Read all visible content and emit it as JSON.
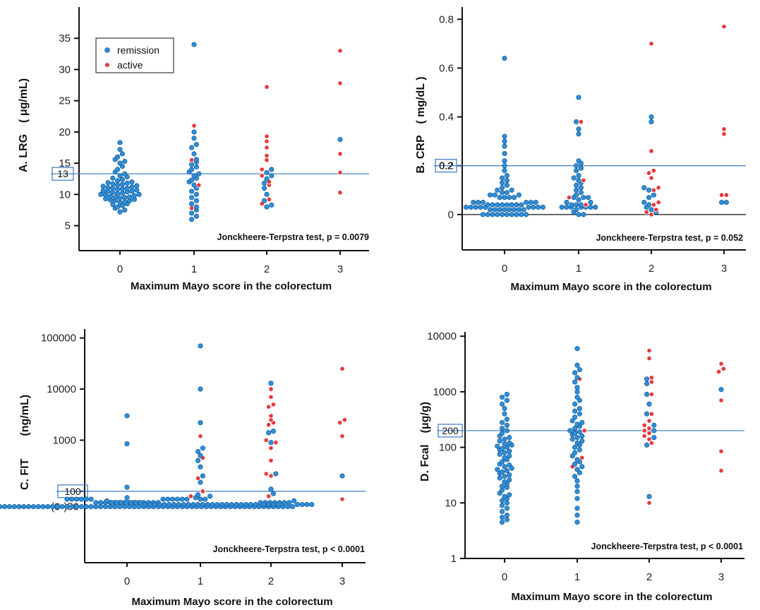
{
  "colors": {
    "remission": "#2f8fd8",
    "active": "#e8383c",
    "refline": "#3a78c2"
  },
  "legend": {
    "remission": "remission",
    "active": "active",
    "placement": "top-left (panel A)"
  },
  "chart_data": [
    {
      "id": "A",
      "type": "scatter",
      "ylabel": "A. LRG　( μg/mL)",
      "xlabel": "Maximum Mayo score  in the colorectum",
      "x_ticks": [
        "0",
        "1",
        "2",
        "3"
      ],
      "y_scale": "linear",
      "ylim": [
        1,
        40
      ],
      "y_ticks": [
        5,
        10,
        15,
        20,
        25,
        30,
        35
      ],
      "y_tick_labels": [
        "5",
        "10",
        "15",
        "20",
        "25",
        "30",
        "35"
      ],
      "cutoff": 13.3,
      "cutoff_label": "13",
      "zero_line": false,
      "test_label": "Jonckheere-Terpstra test,  p = 0.0079",
      "show_legend": true,
      "groups": [
        {
          "x": 0,
          "remission": [
            7.2,
            7.5,
            7.8,
            8.0,
            8.2,
            8.4,
            8.5,
            8.7,
            8.8,
            9.0,
            9.0,
            9.1,
            9.2,
            9.3,
            9.4,
            9.5,
            9.5,
            9.6,
            9.7,
            9.8,
            9.9,
            10.0,
            10.0,
            10.1,
            10.2,
            10.3,
            10.4,
            10.5,
            10.5,
            10.6,
            10.7,
            10.8,
            10.9,
            11.0,
            11.0,
            11.1,
            11.2,
            11.3,
            11.4,
            11.5,
            11.6,
            11.7,
            11.8,
            11.9,
            12.0,
            12.2,
            12.4,
            12.6,
            12.8,
            13.0,
            13.3,
            13.6,
            14.0,
            14.5,
            15.0,
            15.3,
            15.6,
            16.0,
            16.5,
            17.2,
            18.3
          ],
          "active": []
        },
        {
          "x": 1,
          "remission": [
            6.0,
            6.5,
            7.0,
            7.5,
            8.0,
            8.5,
            9.0,
            9.5,
            10.0,
            10.5,
            11.0,
            11.5,
            12.0,
            12.3,
            12.6,
            13.0,
            13.3,
            13.6,
            14.0,
            14.4,
            14.8,
            15.2,
            15.6,
            16.5,
            17.5,
            18.0,
            19.0,
            20.0,
            34.0
          ],
          "active": [
            7.8,
            11.5,
            15.5,
            21.0
          ]
        },
        {
          "x": 2,
          "remission": [
            8.0,
            8.3,
            9.0,
            10.0,
            11.0,
            11.8,
            12.5,
            13.0,
            13.5,
            14.0
          ],
          "active": [
            8.5,
            9.2,
            11.5,
            12.0,
            13.0,
            14.0,
            15.5,
            16.2,
            17.5,
            18.5,
            19.3,
            27.2
          ]
        },
        {
          "x": 3,
          "remission": [
            18.8
          ],
          "active": [
            10.3,
            13.5,
            16.5,
            27.8,
            33.0
          ]
        }
      ]
    },
    {
      "id": "B",
      "type": "scatter",
      "ylabel": "B. CRP　( mg/dL )",
      "xlabel": "Maximum Mayo score  in the colorectum",
      "x_ticks": [
        "0",
        "1",
        "2",
        "3"
      ],
      "y_scale": "linear",
      "ylim": [
        -0.145,
        0.85
      ],
      "y_ticks": [
        0,
        0.2,
        0.4,
        0.6,
        0.8
      ],
      "y_tick_labels": [
        "0",
        "0.2",
        "0.4",
        "0.6",
        "0.8"
      ],
      "cutoff": 0.2,
      "cutoff_label": "0.2",
      "zero_line": true,
      "test_label": "Jonckheere-Terpstra test,  p = 0.052",
      "show_legend": false,
      "groups": [
        {
          "x": 0,
          "remission": [
            0,
            0,
            0,
            0,
            0,
            0,
            0,
            0,
            0,
            0,
            0.02,
            0.02,
            0.02,
            0.02,
            0.02,
            0.02,
            0.02,
            0.02,
            0.03,
            0.03,
            0.03,
            0.03,
            0.03,
            0.03,
            0.03,
            0.03,
            0.03,
            0.04,
            0.04,
            0.04,
            0.04,
            0.04,
            0.04,
            0.04,
            0.04,
            0.05,
            0.05,
            0.05,
            0.05,
            0.05,
            0.05,
            0.07,
            0.07,
            0.07,
            0.07,
            0.08,
            0.08,
            0.08,
            0.09,
            0.09,
            0.1,
            0.1,
            0.11,
            0.12,
            0.13,
            0.14,
            0.15,
            0.16,
            0.18,
            0.2,
            0.22,
            0.25,
            0.28,
            0.3,
            0.32,
            0.64
          ],
          "active": []
        },
        {
          "x": 1,
          "remission": [
            0,
            0,
            0.01,
            0.02,
            0.03,
            0.03,
            0.03,
            0.03,
            0.03,
            0.03,
            0.03,
            0.04,
            0.04,
            0.04,
            0.05,
            0.05,
            0.06,
            0.07,
            0.07,
            0.07,
            0.08,
            0.09,
            0.1,
            0.11,
            0.12,
            0.13,
            0.14,
            0.15,
            0.16,
            0.18,
            0.19,
            0.2,
            0.21,
            0.22,
            0.33,
            0.35,
            0.38,
            0.48
          ],
          "active": [
            0.04,
            0.07,
            0.14,
            0.38
          ]
        },
        {
          "x": 2,
          "remission": [
            0.01,
            0.02,
            0.03,
            0.04,
            0.05,
            0.07,
            0.08,
            0.1,
            0.11,
            0.38,
            0.4
          ],
          "active": [
            0,
            0.01,
            0.02,
            0.04,
            0.05,
            0.1,
            0.11,
            0.15,
            0.17,
            0.18,
            0.26,
            0.7
          ]
        },
        {
          "x": 3,
          "remission": [
            0.05,
            0.05
          ],
          "active": [
            0.08,
            0.08,
            0.33,
            0.35,
            0.77
          ]
        }
      ]
    },
    {
      "id": "C",
      "type": "scatter",
      "ylabel": "C. FIT　　(ng/mL)",
      "xlabel": "Maximum Mayo score  in the colorectum",
      "x_ticks": [
        "0",
        "1",
        "2",
        "3"
      ],
      "y_scale": "log",
      "ylim": [
        4,
        150000
      ],
      "y_ticks": [
        100,
        1000,
        10000,
        100000
      ],
      "y_tick_labels": [
        "",
        "1000",
        "10000",
        "100000"
      ],
      "cutoff": 100,
      "cutoff_label": "100",
      "extra_tick_label": "(0-)50",
      "extra_tick_value": 50,
      "zero_line": false,
      "test_label": "Jonckheere-Terpstra test,  p < 0.0001",
      "show_legend": false,
      "groups": [
        {
          "x": 0,
          "remission": [
            50,
            50,
            50,
            50,
            50,
            50,
            50,
            50,
            50,
            50,
            50,
            50,
            50,
            50,
            50,
            50,
            50,
            50,
            50,
            50,
            50,
            50,
            50,
            50,
            50,
            50,
            50,
            50,
            50,
            50,
            50,
            50,
            50,
            50,
            50,
            50,
            50,
            50,
            50,
            50,
            50,
            50,
            50,
            50,
            50,
            50,
            50,
            50,
            50,
            50,
            50,
            50,
            50,
            50,
            50,
            50,
            50,
            50,
            50,
            50,
            50,
            50,
            50,
            50,
            50,
            50,
            50,
            50,
            50,
            50,
            55,
            55,
            55,
            55,
            55,
            55,
            55,
            55,
            60,
            60,
            60,
            60,
            60,
            60,
            60,
            60,
            60,
            60,
            60,
            60,
            60,
            60,
            70,
            70,
            70,
            70,
            70,
            70,
            70,
            70,
            70,
            70,
            70,
            70,
            75,
            120,
            850,
            3000
          ],
          "active": []
        },
        {
          "x": 1,
          "remission": [
            55,
            55,
            55,
            55,
            55,
            55,
            55,
            55,
            55,
            55,
            55,
            55,
            55,
            55,
            55,
            55,
            55,
            55,
            55,
            55,
            55,
            55,
            55,
            55,
            60,
            60,
            60,
            60,
            60,
            60,
            60,
            60,
            60,
            60,
            60,
            60,
            60,
            60,
            65,
            65,
            70,
            70,
            75,
            80,
            85,
            150,
            200,
            300,
            400,
            500,
            600,
            700,
            2200,
            10000,
            70000
          ],
          "active": [
            80,
            100,
            180,
            450,
            1200
          ]
        },
        {
          "x": 2,
          "remission": [
            55,
            55,
            55,
            55,
            90,
            110,
            220,
            900,
            1400,
            1500,
            13000
          ],
          "active": [
            80,
            200,
            220,
            400,
            700,
            900,
            1000,
            2000,
            2200,
            2500,
            3000,
            4500,
            5000,
            7000,
            10000
          ]
        },
        {
          "x": 3,
          "remission": [
            200
          ],
          "active": [
            70,
            1200,
            2200,
            2500,
            25000
          ]
        }
      ]
    },
    {
      "id": "D",
      "type": "scatter",
      "ylabel": "D. Fcal　(μg/g)",
      "xlabel": "Maximum Mayo score  in the colorectum",
      "x_ticks": [
        "0",
        "1",
        "2",
        "3"
      ],
      "y_scale": "log",
      "ylim": [
        1,
        12000
      ],
      "y_ticks": [
        1,
        10,
        100,
        1000,
        10000
      ],
      "y_tick_labels": [
        "1",
        "10",
        "100",
        "1000",
        "10000"
      ],
      "cutoff": 200,
      "cutoff_label": "200",
      "zero_line": false,
      "test_label": "Jonckheere-Terpstra test,  p < 0.0001",
      "show_legend": false,
      "groups": [
        {
          "x": 0,
          "remission": [
            4.5,
            5,
            5.5,
            6,
            7,
            8,
            9,
            10,
            11,
            12,
            13,
            14,
            15,
            17,
            19,
            20,
            22,
            24,
            26,
            28,
            30,
            32,
            34,
            36,
            38,
            40,
            42,
            45,
            48,
            50,
            55,
            60,
            65,
            70,
            75,
            80,
            85,
            90,
            95,
            100,
            105,
            110,
            115,
            120,
            130,
            140,
            150,
            160,
            180,
            200,
            220,
            250,
            280,
            320,
            400,
            500,
            600,
            700,
            800,
            900
          ],
          "active": []
        },
        {
          "x": 1,
          "remission": [
            4.5,
            6,
            8,
            12,
            16,
            20,
            25,
            30,
            35,
            40,
            45,
            50,
            55,
            60,
            70,
            80,
            90,
            100,
            110,
            120,
            130,
            140,
            150,
            160,
            170,
            180,
            190,
            200,
            220,
            240,
            260,
            280,
            300,
            350,
            400,
            450,
            500,
            600,
            700,
            800,
            1000,
            1200,
            1500,
            1800,
            2200,
            2500,
            3000,
            6000
          ],
          "active": [
            45,
            65,
            200,
            1700
          ]
        },
        {
          "x": 2,
          "remission": [
            13,
            110,
            150,
            200,
            250,
            400,
            600,
            900,
            1400,
            1700
          ],
          "active": [
            10,
            120,
            140,
            160,
            180,
            200,
            220,
            250,
            300,
            400,
            900,
            1500,
            1800,
            4000,
            5500
          ]
        },
        {
          "x": 3,
          "remission": [
            1100
          ],
          "active": [
            38,
            85,
            700,
            2300,
            2600,
            3200
          ]
        }
      ]
    }
  ]
}
